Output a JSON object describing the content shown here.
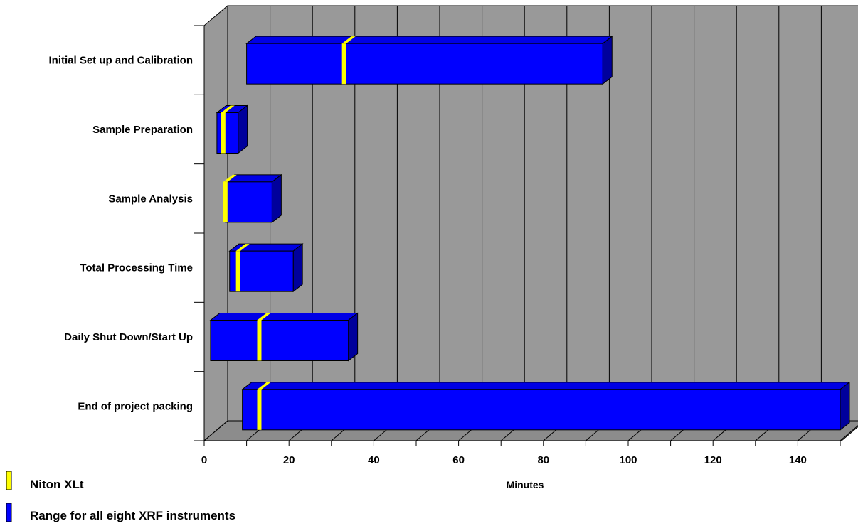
{
  "chart_data": {
    "type": "bar",
    "subtype": "3d-floating-range-bar",
    "title": "",
    "xlabel": "Minutes",
    "ylabel": "",
    "xlim": [
      0,
      150
    ],
    "x_ticks": [
      "0",
      "20",
      "40",
      "60",
      "80",
      "100",
      "120",
      "140"
    ],
    "grid": true,
    "categories": [
      "Initial Set up and Calibration",
      "Sample Preparation",
      "Sample Analysis",
      "Total Processing Time",
      "Daily Shut Down/Start Up",
      "End of project packing"
    ],
    "series": [
      {
        "name": "Range for all eight XRF instruments",
        "ranges": [
          [
            10,
            94
          ],
          [
            3,
            8
          ],
          [
            5,
            16
          ],
          [
            6,
            21
          ],
          [
            1.5,
            34
          ],
          [
            9,
            150
          ]
        ]
      },
      {
        "name": "Niton XLt",
        "values": [
          33,
          4.5,
          5,
          8,
          13,
          13
        ]
      }
    ],
    "colors": {
      "range_bar": "#0000ff",
      "range_bar_top": "#0000e6",
      "range_bar_side": "#00009c",
      "marker": "#ffff00",
      "wall": "#999999",
      "floor": "#8c8c8c"
    },
    "legend": {
      "position": "bottom-left",
      "items": [
        "Niton XLt",
        "Range for all eight XRF instruments"
      ]
    }
  }
}
